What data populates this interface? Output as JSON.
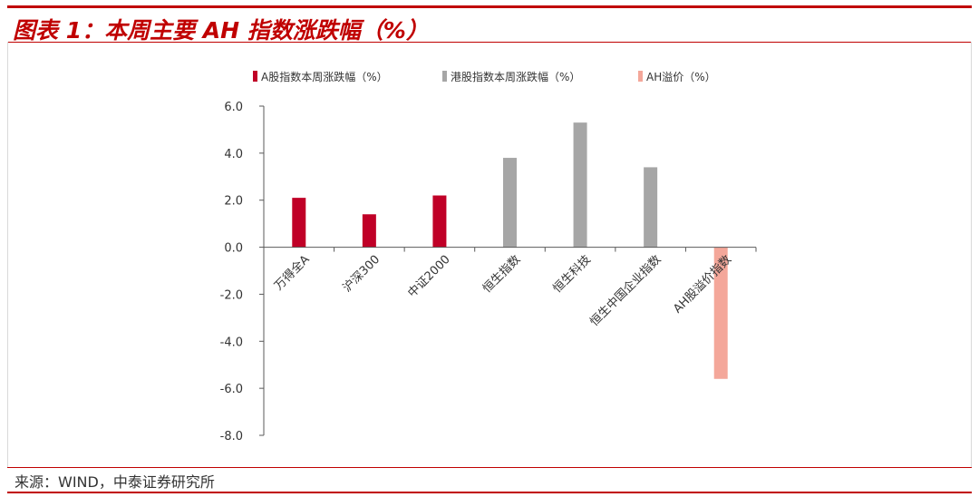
{
  "header": {
    "title": "图表 1：本周主要 AH 指数涨跌幅（%）"
  },
  "footer": {
    "source": "来源：WIND，中泰证券研究所"
  },
  "colors": {
    "a_share": "#c00027",
    "hk": "#a6a6a6",
    "premium": "#f4a79a",
    "accent": "#c00000"
  },
  "chart_data": {
    "type": "bar",
    "title": "",
    "xlabel": "",
    "ylabel": "",
    "ylim": [
      -8,
      6
    ],
    "yticks": [
      6,
      4,
      2,
      0,
      -2,
      -4,
      -6,
      -8
    ],
    "ytick_labels": [
      "6.0",
      "4.0",
      "2.0",
      "0.0",
      "-2.0",
      "-4.0",
      "-6.0",
      "-8.0"
    ],
    "grid": false,
    "legend_position": "top",
    "categories": [
      "万得全A",
      "沪深300",
      "中证2000",
      "恒生指数",
      "恒生科技",
      "恒生中国企业指数",
      "AH股溢价指数"
    ],
    "series": [
      {
        "name": "A股指数本周涨跌幅（%）",
        "color_key": "a_share",
        "values": [
          2.1,
          1.4,
          2.2,
          null,
          null,
          null,
          null
        ]
      },
      {
        "name": "港股指数本周涨跌幅（%）",
        "color_key": "hk",
        "values": [
          null,
          null,
          null,
          3.8,
          5.3,
          3.4,
          null
        ]
      },
      {
        "name": "AH溢价（%）",
        "color_key": "premium",
        "values": [
          null,
          null,
          null,
          null,
          null,
          null,
          -5.6
        ]
      }
    ]
  }
}
